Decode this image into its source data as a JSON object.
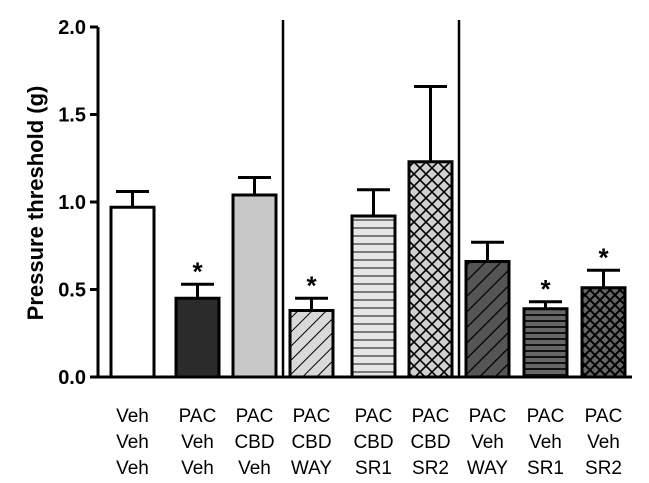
{
  "chart_data": {
    "type": "bar",
    "ylabel": "Pressure threshold (g)",
    "ylim": [
      0,
      2.0
    ],
    "yticks": [
      "0.0",
      "0.5",
      "1.0",
      "1.5",
      "2.0"
    ],
    "grid": false,
    "categories": [
      [
        "Veh",
        "Veh",
        "Veh"
      ],
      [
        "PAC",
        "Veh",
        "Veh"
      ],
      [
        "PAC",
        "CBD",
        "Veh"
      ],
      [
        "PAC",
        "CBD",
        "WAY"
      ],
      [
        "PAC",
        "CBD",
        "SR1"
      ],
      [
        "PAC",
        "CBD",
        "SR2"
      ],
      [
        "PAC",
        "Veh",
        "WAY"
      ],
      [
        "PAC",
        "Veh",
        "SR1"
      ],
      [
        "PAC",
        "Veh",
        "SR2"
      ]
    ],
    "values": [
      0.97,
      0.45,
      1.04,
      0.38,
      0.92,
      1.23,
      0.66,
      0.39,
      0.51
    ],
    "errors": [
      0.09,
      0.08,
      0.1,
      0.07,
      0.15,
      0.43,
      0.11,
      0.04,
      0.1
    ],
    "significance": [
      "",
      "*",
      "",
      "*",
      "",
      "",
      "",
      "*",
      "*"
    ],
    "fills": [
      "white",
      "dark",
      "light-gray",
      "diagonal-light",
      "horizontal-stripes",
      "crosshatch-light",
      "diagonal-dark",
      "horizontal-dark",
      "crosshatch-dark"
    ],
    "separators_after_bar": [
      3,
      6
    ]
  }
}
